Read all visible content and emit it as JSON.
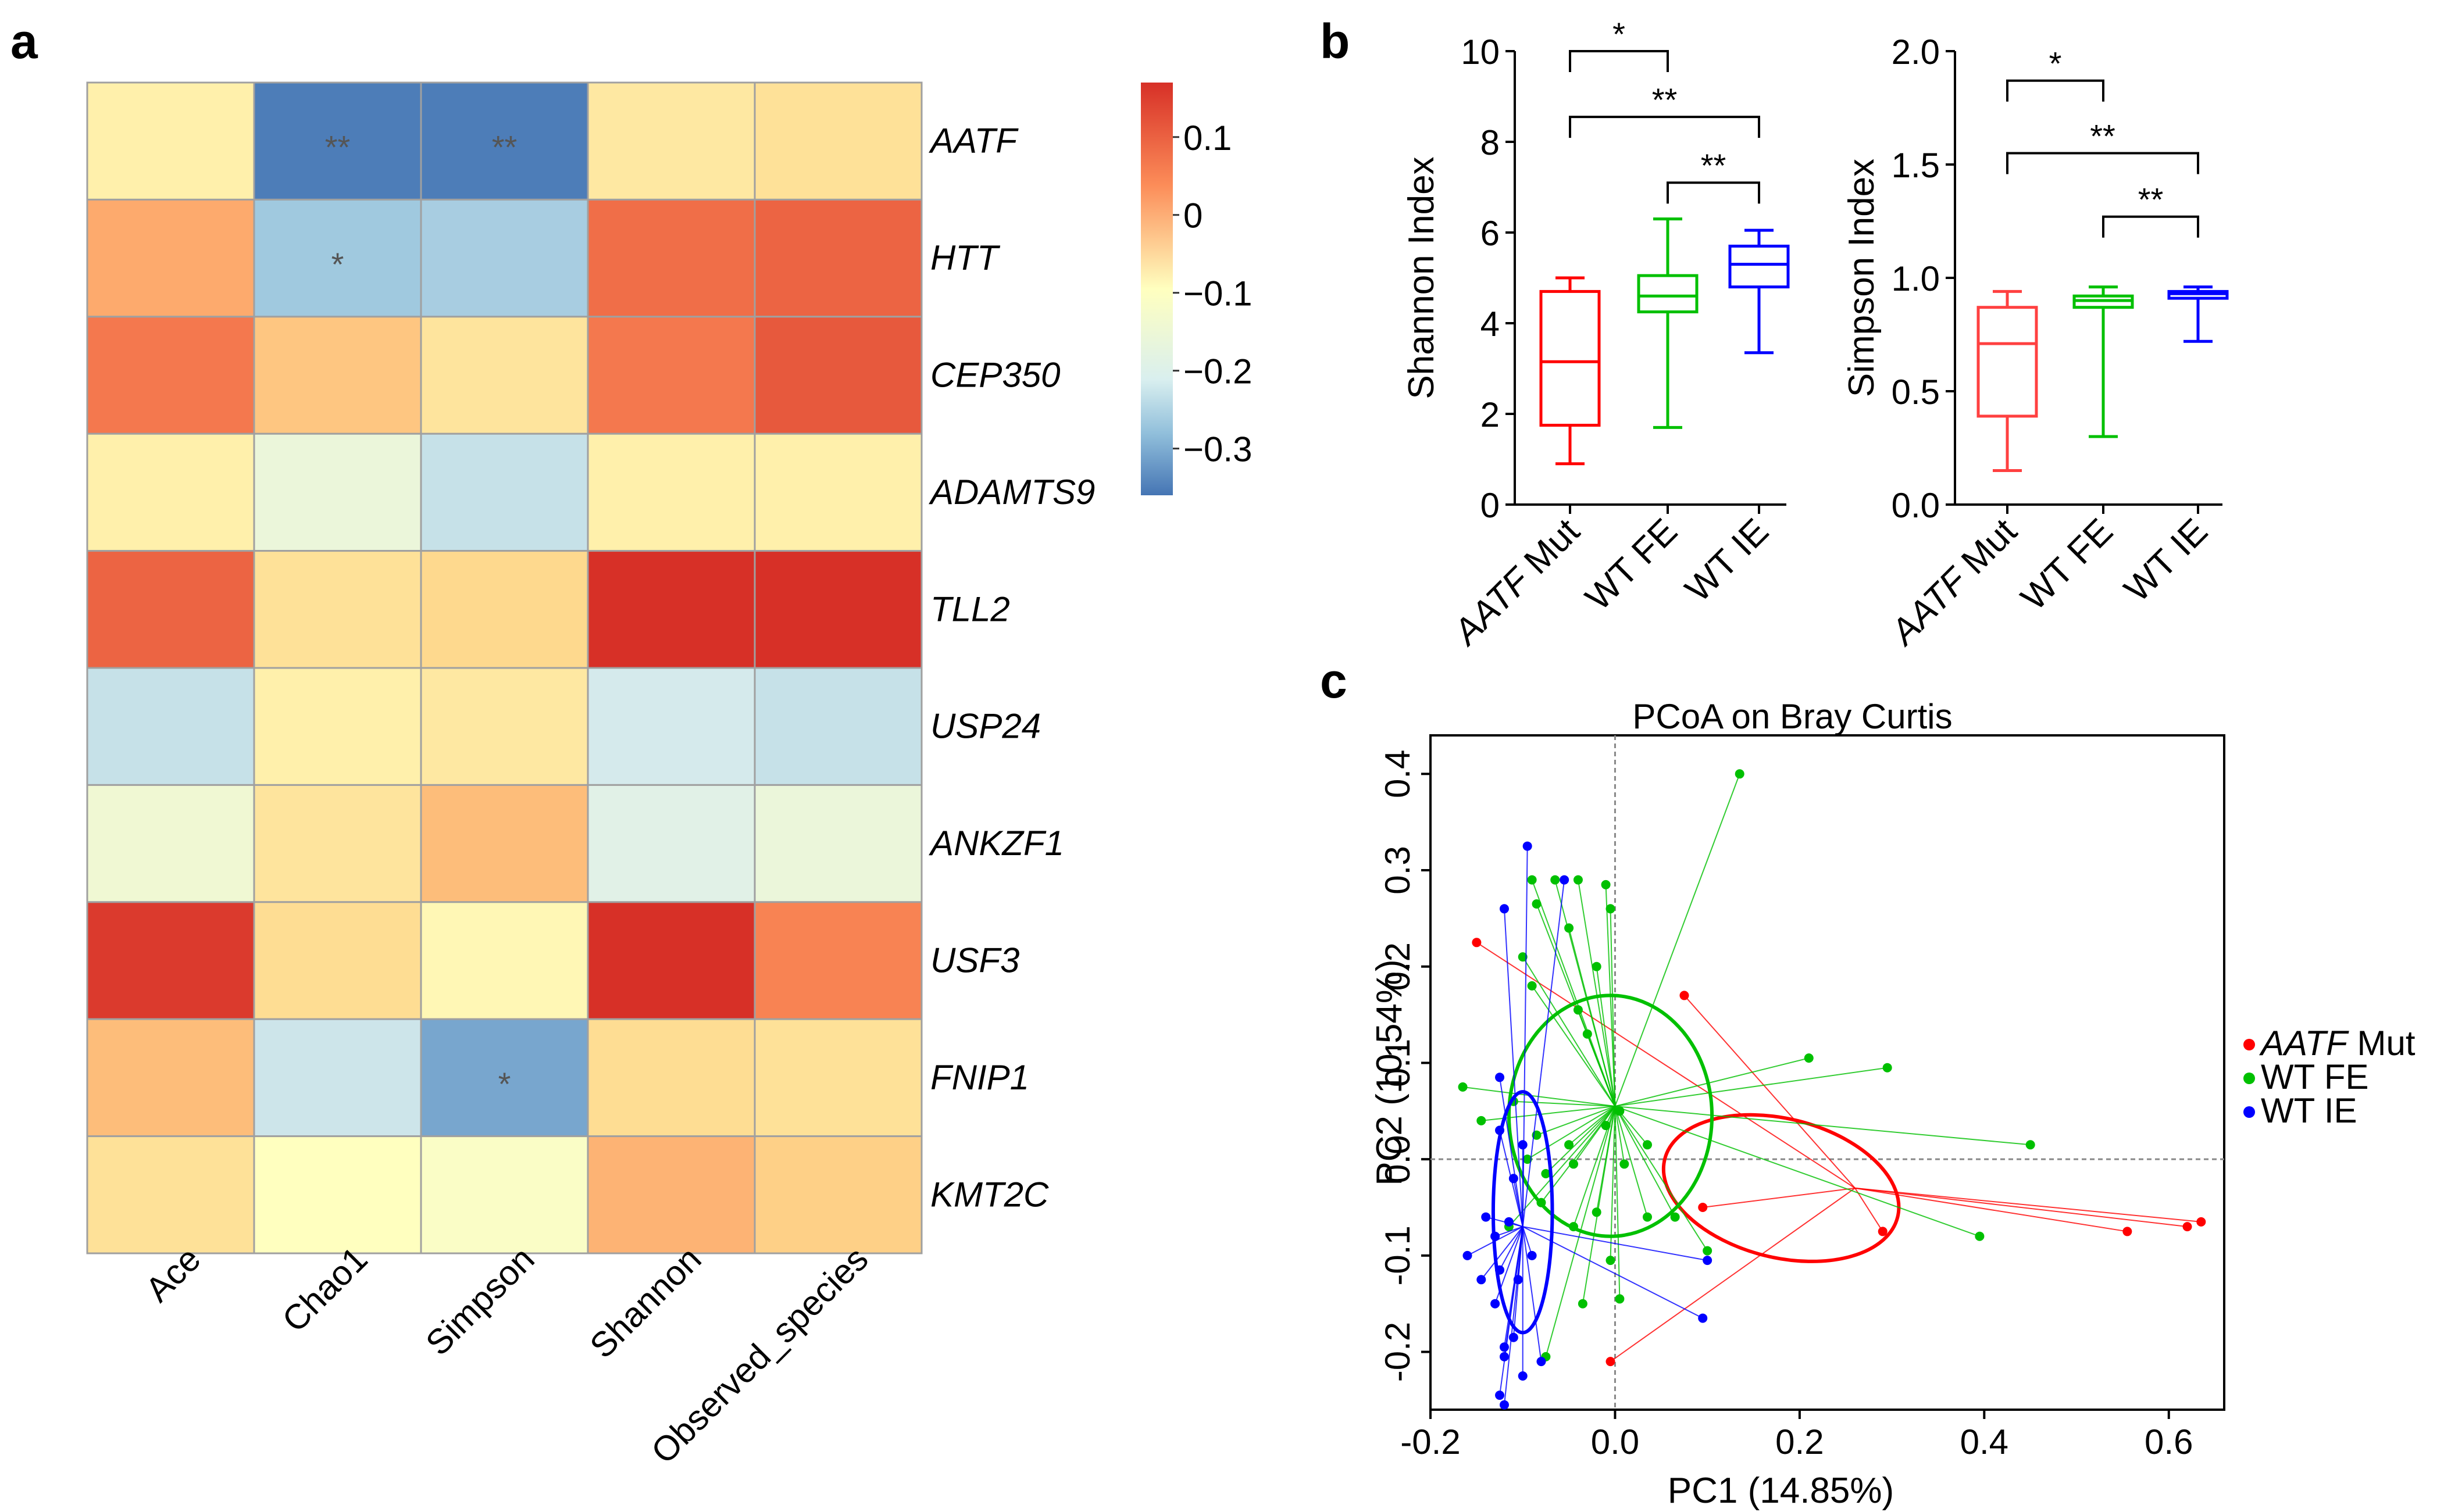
{
  "panel_labels": {
    "a": "a",
    "b": "b",
    "c": "c"
  },
  "chart_data": [
    {
      "type": "heatmap",
      "rows": [
        "AATF",
        "HTT",
        "CEP350",
        "ADAMTS9",
        "TLL2",
        "USP24",
        "ANKZF1",
        "USF3",
        "FNIP1",
        "KMT2C"
      ],
      "columns": [
        "Ace",
        "Chao1",
        "Simpson",
        "Shannon",
        "Observed_species"
      ],
      "values": [
        [
          -0.06,
          -0.35,
          -0.35,
          -0.04,
          -0.02
        ],
        [
          0.05,
          -0.25,
          -0.24,
          0.11,
          0.12
        ],
        [
          0.1,
          0.02,
          -0.03,
          0.1,
          0.13
        ],
        [
          -0.06,
          -0.14,
          -0.2,
          -0.06,
          -0.06
        ],
        [
          0.12,
          -0.02,
          0.0,
          0.2,
          0.19
        ],
        [
          -0.2,
          -0.06,
          -0.04,
          -0.18,
          -0.2
        ],
        [
          -0.13,
          -0.03,
          0.03,
          -0.16,
          -0.14
        ],
        [
          0.16,
          -0.01,
          -0.08,
          0.17,
          0.09
        ],
        [
          0.03,
          -0.19,
          -0.3,
          -0.01,
          -0.02
        ],
        [
          -0.02,
          -0.1,
          -0.11,
          0.04,
          0.01
        ]
      ],
      "annotations": [
        {
          "row": 0,
          "col": 1,
          "text": "**"
        },
        {
          "row": 0,
          "col": 2,
          "text": "**"
        },
        {
          "row": 1,
          "col": 1,
          "text": "*"
        },
        {
          "row": 8,
          "col": 2,
          "text": "*"
        }
      ],
      "colorbar": {
        "ticks": [
          0.1,
          0,
          -0.1,
          -0.2,
          -0.3
        ],
        "tick_labels": [
          "0.1",
          "0",
          "−0.1",
          "−0.2",
          "−0.3"
        ],
        "range": [
          -0.36,
          0.17
        ]
      },
      "colors": {
        "low": "#4575b4",
        "mid": "#ffffbf",
        "high": "#d73027"
      }
    },
    {
      "type": "box",
      "ylabel": "Shannon Index",
      "ylim": [
        0,
        10
      ],
      "yticks": [
        "0",
        "2",
        "4",
        "6",
        "8",
        "10"
      ],
      "ytick_values": [
        0,
        2,
        4,
        6,
        8,
        10
      ],
      "groups": [
        {
          "label_italic": "AATF",
          "label_rest": " Mut",
          "color": "#ff0000",
          "min": 0.9,
          "q1": 1.75,
          "median": 3.15,
          "q3": 4.7,
          "max": 5.0
        },
        {
          "label_italic": "",
          "label_rest": "WT FE",
          "color": "#00c000",
          "min": 1.7,
          "q1": 4.25,
          "median": 4.6,
          "q3": 5.05,
          "max": 6.3
        },
        {
          "label_italic": "",
          "label_rest": "WT IE",
          "color": "#0000ff",
          "min": 3.35,
          "q1": 4.8,
          "median": 5.3,
          "q3": 5.7,
          "max": 6.05
        }
      ],
      "comparisons": [
        {
          "from": 0,
          "to": 1,
          "y": 10.0,
          "label": "*"
        },
        {
          "from": 0,
          "to": 2,
          "y": 8.55,
          "label": "**"
        },
        {
          "from": 1,
          "to": 2,
          "y": 7.1,
          "label": "**"
        }
      ]
    },
    {
      "type": "box",
      "ylabel": "Simpson Index",
      "ylim": [
        0,
        2.0
      ],
      "yticks": [
        "0.0",
        "0.5",
        "1.0",
        "1.5",
        "2.0"
      ],
      "ytick_values": [
        0,
        0.5,
        1.0,
        1.5,
        2.0
      ],
      "groups": [
        {
          "label_italic": "AATF",
          "label_rest": " Mut",
          "color": "#ff4040",
          "min": 0.15,
          "q1": 0.39,
          "median": 0.71,
          "q3": 0.87,
          "max": 0.94
        },
        {
          "label_italic": "",
          "label_rest": "WT FE",
          "color": "#00c000",
          "min": 0.3,
          "q1": 0.87,
          "median": 0.9,
          "q3": 0.92,
          "max": 0.96
        },
        {
          "label_italic": "",
          "label_rest": "WT IE",
          "color": "#0000ff",
          "min": 0.72,
          "q1": 0.91,
          "median": 0.93,
          "q3": 0.94,
          "max": 0.96
        }
      ],
      "comparisons": [
        {
          "from": 0,
          "to": 1,
          "y": 1.87,
          "label": "*"
        },
        {
          "from": 0,
          "to": 2,
          "y": 1.55,
          "label": "**"
        },
        {
          "from": 1,
          "to": 2,
          "y": 1.27,
          "label": "**"
        }
      ]
    },
    {
      "type": "scatter",
      "title": "PCoA  on  Bray  Curtis",
      "xlabel": "PC1 (14.85%)",
      "ylabel": "PC2 (10.54%)",
      "xlim": [
        -0.2,
        0.66
      ],
      "ylim": [
        -0.26,
        0.44
      ],
      "xticks": [
        -0.2,
        0.0,
        0.2,
        0.4,
        0.6
      ],
      "xtick_labels": [
        "-0.2",
        "0.0",
        "0.2",
        "0.4",
        "0.6"
      ],
      "yticks": [
        -0.2,
        -0.1,
        0.0,
        0.1,
        0.2,
        0.3,
        0.4
      ],
      "ytick_labels": [
        "-0.2",
        "-0.1",
        "0.0",
        "0.1",
        "0.2",
        "0.3",
        "0.4"
      ],
      "series": [
        {
          "name_italic": "AATF",
          "name_rest": " Mut",
          "color": "#ff0000",
          "centroid": [
            0.26,
            -0.03
          ],
          "ellipse": {
            "cx": 0.18,
            "cy": -0.03,
            "rx": 0.13,
            "ry": 0.072,
            "angle_deg": 14
          },
          "points": [
            [
              -0.15,
              0.225
            ],
            [
              0.075,
              0.17
            ],
            [
              0.095,
              -0.05
            ],
            [
              0.29,
              -0.075
            ],
            [
              0.555,
              -0.075
            ],
            [
              0.62,
              -0.07
            ],
            [
              0.635,
              -0.065
            ],
            [
              -0.005,
              -0.21
            ]
          ]
        },
        {
          "name_italic": "",
          "name_rest": "WT FE",
          "color": "#00c000",
          "centroid": [
            0.0,
            0.055
          ],
          "ellipse": {
            "cx": -0.005,
            "cy": 0.045,
            "rx": 0.11,
            "ry": 0.125,
            "angle_deg": 0
          },
          "points": [
            [
              0.135,
              0.4
            ],
            [
              -0.09,
              0.29
            ],
            [
              -0.065,
              0.29
            ],
            [
              -0.04,
              0.29
            ],
            [
              -0.01,
              0.285
            ],
            [
              -0.085,
              0.265
            ],
            [
              -0.005,
              0.26
            ],
            [
              -0.05,
              0.24
            ],
            [
              -0.1,
              0.21
            ],
            [
              -0.02,
              0.2
            ],
            [
              -0.09,
              0.18
            ],
            [
              -0.04,
              0.155
            ],
            [
              -0.03,
              0.13
            ],
            [
              0.21,
              0.105
            ],
            [
              0.295,
              0.095
            ],
            [
              -0.165,
              0.075
            ],
            [
              -0.11,
              0.06
            ],
            [
              0.005,
              0.05
            ],
            [
              -0.145,
              0.04
            ],
            [
              -0.01,
              0.035
            ],
            [
              -0.085,
              0.025
            ],
            [
              -0.05,
              0.015
            ],
            [
              0.035,
              0.015
            ],
            [
              0.45,
              0.015
            ],
            [
              -0.095,
              0.0
            ],
            [
              -0.045,
              -0.005
            ],
            [
              0.01,
              -0.005
            ],
            [
              -0.075,
              -0.015
            ],
            [
              -0.08,
              -0.045
            ],
            [
              -0.02,
              -0.055
            ],
            [
              0.035,
              -0.06
            ],
            [
              0.395,
              -0.08
            ],
            [
              -0.045,
              -0.07
            ],
            [
              -0.115,
              -0.07
            ],
            [
              0.1,
              -0.095
            ],
            [
              -0.005,
              -0.105
            ],
            [
              0.005,
              -0.145
            ],
            [
              -0.035,
              -0.15
            ],
            [
              -0.075,
              -0.205
            ]
          ],
          "extra_points": [
            [
              0.065,
              -0.06
            ]
          ]
        },
        {
          "name_italic": "",
          "name_rest": "WT IE",
          "color": "#0000ff",
          "centroid": [
            -0.1,
            -0.07
          ],
          "ellipse": {
            "cx": -0.1,
            "cy": -0.055,
            "rx": 0.032,
            "ry": 0.125,
            "angle_deg": 0
          },
          "points": [
            [
              -0.095,
              0.325
            ],
            [
              -0.055,
              0.29
            ],
            [
              -0.12,
              0.26
            ],
            [
              -0.125,
              0.085
            ],
            [
              -0.125,
              0.03
            ],
            [
              -0.1,
              0.015
            ],
            [
              -0.11,
              -0.02
            ],
            [
              -0.14,
              -0.06
            ],
            [
              -0.115,
              -0.065
            ],
            [
              -0.13,
              -0.08
            ],
            [
              -0.09,
              -0.1
            ],
            [
              -0.16,
              -0.1
            ],
            [
              -0.125,
              -0.115
            ],
            [
              -0.145,
              -0.125
            ],
            [
              -0.105,
              -0.125
            ],
            [
              -0.13,
              -0.15
            ],
            [
              0.1,
              -0.105
            ],
            [
              0.095,
              -0.165
            ],
            [
              -0.11,
              -0.185
            ],
            [
              -0.12,
              -0.195
            ],
            [
              -0.12,
              -0.205
            ],
            [
              -0.1,
              -0.225
            ],
            [
              -0.125,
              -0.245
            ],
            [
              -0.12,
              -0.255
            ],
            [
              -0.08,
              -0.21
            ]
          ]
        }
      ]
    }
  ]
}
